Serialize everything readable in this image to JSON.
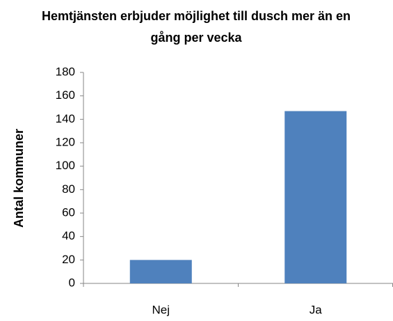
{
  "chart_data": {
    "type": "bar",
    "title": "Hemtjänsten erbjuder möjlighet till dusch mer än en gång per vecka",
    "y_label": "Antal kommuner",
    "categories": [
      "Nej",
      "Ja"
    ],
    "values": [
      20,
      147
    ],
    "color": "#4f81bd",
    "ylim": [
      0,
      180
    ],
    "yticks": [
      0,
      20,
      40,
      60,
      80,
      100,
      120,
      140,
      160,
      180
    ],
    "grid": false
  }
}
